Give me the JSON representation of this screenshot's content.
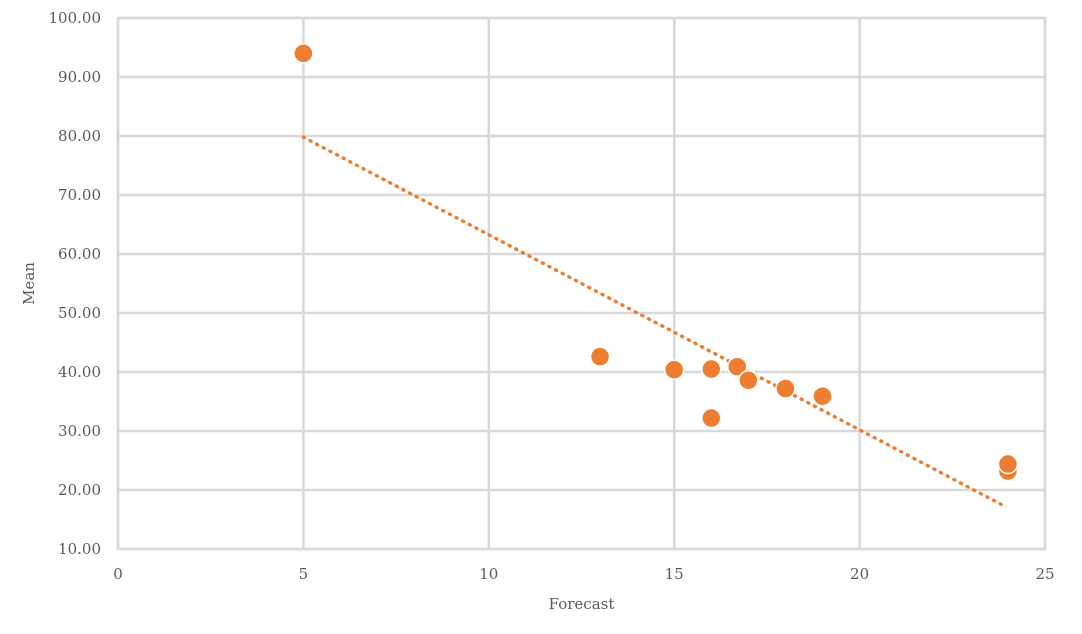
{
  "chart_data": {
    "type": "scatter",
    "title": "",
    "xlabel": "Forecast",
    "ylabel": "Mean",
    "xlim": [
      0,
      25
    ],
    "ylim": [
      10,
      100
    ],
    "x_ticks": [
      0,
      5,
      10,
      15,
      20,
      25
    ],
    "x_tick_labels": [
      "0",
      "5",
      "10",
      "15",
      "20",
      "25"
    ],
    "y_ticks": [
      10,
      20,
      30,
      40,
      50,
      60,
      70,
      80,
      90,
      100
    ],
    "y_tick_labels": [
      "10.00",
      "20.00",
      "30.00",
      "40.00",
      "50.00",
      "60.00",
      "70.00",
      "80.00",
      "90.00",
      "100.00"
    ],
    "grid": true,
    "legend": "none",
    "series": [
      {
        "color": "#ed7d31",
        "x": [
          5,
          13,
          15,
          16,
          16,
          16.7,
          17,
          18,
          19,
          24,
          24
        ],
        "y": [
          94.0,
          42.6,
          40.4,
          40.5,
          32.2,
          40.9,
          38.6,
          37.2,
          35.9,
          23.2,
          24.4
        ]
      }
    ],
    "trendline": {
      "type": "linear",
      "style": "dotted",
      "color": "#ed7d31",
      "x": [
        5,
        23.9
      ],
      "y": [
        79.8,
        17.3
      ]
    }
  }
}
